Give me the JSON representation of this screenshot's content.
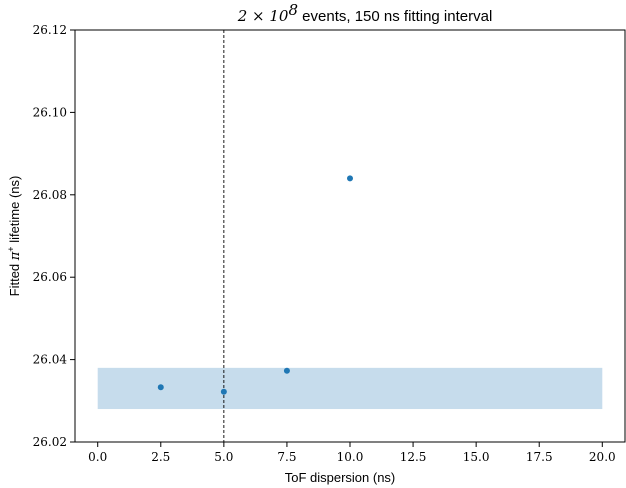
{
  "chart_data": {
    "type": "scatter",
    "title": {
      "math_prefix": "2 × 10",
      "math_exponent": "8",
      "text": " events, 150 ns fitting interval"
    },
    "xlabel": "ToF dispersion (ns)",
    "ylabel": {
      "prefix": "Fitted ",
      "symbol": "π",
      "superscript": "+",
      "suffix": " lifetime (ns)"
    },
    "xlim": [
      -0.9,
      20.9
    ],
    "ylim": [
      26.02,
      26.12
    ],
    "x_ticks": [
      0.0,
      2.5,
      5.0,
      7.5,
      10.0,
      12.5,
      15.0,
      17.5,
      20.0
    ],
    "x_tick_labels": [
      "0.0",
      "2.5",
      "5.0",
      "7.5",
      "10.0",
      "12.5",
      "15.0",
      "17.5",
      "20.0"
    ],
    "y_ticks": [
      26.02,
      26.04,
      26.06,
      26.08,
      26.1,
      26.12
    ],
    "y_tick_labels": [
      "26.02",
      "26.04",
      "26.06",
      "26.08",
      "26.10",
      "26.12"
    ],
    "grid": false,
    "series": [
      {
        "color": "#1f77b4",
        "points": [
          {
            "x": 2.5,
            "y": 26.0333
          },
          {
            "x": 5.0,
            "y": 26.0322
          },
          {
            "x": 7.5,
            "y": 26.0373
          },
          {
            "x": 10.0,
            "y": 26.084
          }
        ]
      }
    ],
    "band": {
      "x": [
        0.0,
        20.0
      ],
      "y": [
        26.028,
        26.038
      ],
      "color": "#c6dcec"
    },
    "vline": {
      "x": 5.0,
      "style": "dashed",
      "color": "#000000"
    }
  }
}
